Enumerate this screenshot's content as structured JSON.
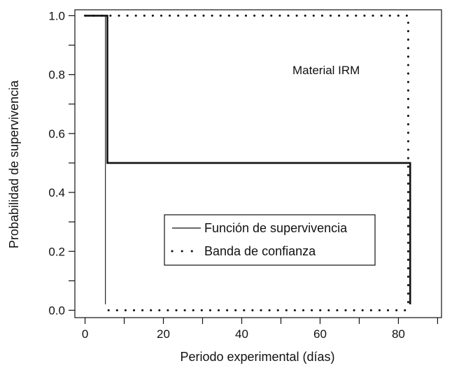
{
  "chart_data": {
    "type": "line",
    "title": "",
    "xlabel": "Periodo experimental (días)",
    "ylabel": "Probabilidad de supervivencia",
    "xlim": [
      -2.6,
      91
    ],
    "ylim": [
      -0.025,
      1.02
    ],
    "x_ticks": [
      0,
      20,
      40,
      60,
      80
    ],
    "y_ticks": [
      0.0,
      0.2,
      0.4,
      0.6,
      0.8,
      1.0
    ],
    "y_tick_labels": [
      "0.0",
      "0.2",
      "0.4",
      "0.6",
      "0.8",
      "1.0"
    ],
    "annotation": "Material IRM",
    "grid": false,
    "legend_position": "lower-center",
    "series": [
      {
        "name": "Función de supervivencia",
        "style": "solid",
        "color": "#111111",
        "x": [
          0,
          5.7,
          5.7,
          83,
          83
        ],
        "y": [
          1.0,
          1.0,
          0.5,
          0.5,
          0.02
        ]
      },
      {
        "name": "Banda de confianza",
        "style": "dotted",
        "color": "#111111",
        "x": [
          0,
          82.5,
          82.5
        ],
        "y": [
          1.0,
          1.0,
          0.0
        ]
      },
      {
        "name": "",
        "style": "dotted",
        "color": "#111111",
        "x": [
          6,
          83
        ],
        "y": [
          0.0,
          0.0
        ]
      }
    ],
    "extra_lines": [
      {
        "style": "thin-solid",
        "x": [
          5.2,
          5.2
        ],
        "y": [
          1.0,
          0.02
        ]
      }
    ]
  }
}
